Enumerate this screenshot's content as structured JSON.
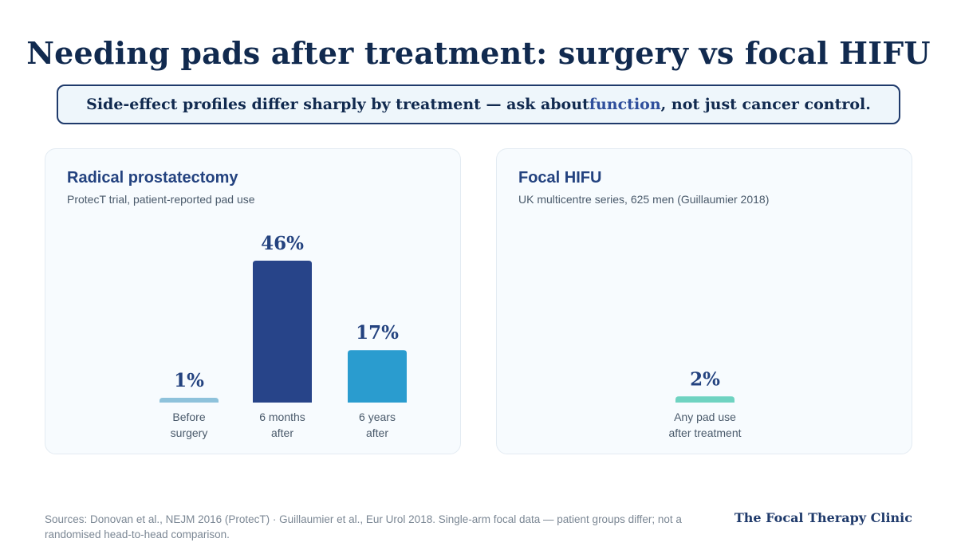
{
  "title": "Needing pads after treatment: surgery vs focal HIFU",
  "callout": {
    "before": "Side-effect profiles differ sharply by treatment — ask about ",
    "highlight": "function",
    "after": ", not just cancer control."
  },
  "colors": {
    "before": "#8ec2db",
    "six_months": "#274489",
    "six_years": "#2a9ccf",
    "hifu": "#6fd3c1",
    "label": "#23427f"
  },
  "chart_data": [
    {
      "type": "bar",
      "title": "Radical prostatectomy",
      "subtitle": "ProtecT trial, patient-reported pad use",
      "unit": "%",
      "ylim": [
        0,
        46
      ],
      "bars": [
        {
          "label_lines": [
            "Before",
            "surgery"
          ],
          "value": 1,
          "value_label": "1%",
          "color_key": "before"
        },
        {
          "label_lines": [
            "6 months",
            "after"
          ],
          "value": 46,
          "value_label": "46%",
          "color_key": "six_months"
        },
        {
          "label_lines": [
            "6 years",
            "after"
          ],
          "value": 17,
          "value_label": "17%",
          "color_key": "six_years"
        }
      ]
    },
    {
      "type": "bar",
      "title": "Focal HIFU",
      "subtitle": "UK multicentre series, 625 men (Guillaumier 2018)",
      "unit": "%",
      "ylim": [
        0,
        46
      ],
      "bars": [
        {
          "label_lines": [
            "Any pad use",
            "after treatment"
          ],
          "value": 2,
          "value_label": "2%",
          "color_key": "hifu"
        }
      ]
    }
  ],
  "footer": {
    "sources": "Sources: Donovan et al., NEJM 2016 (ProtecT) · Guillaumier et al., Eur Urol 2018. Single-arm focal data — patient groups differ; not a randomised head-to-head comparison.",
    "brand": "The Focal Therapy Clinic"
  }
}
